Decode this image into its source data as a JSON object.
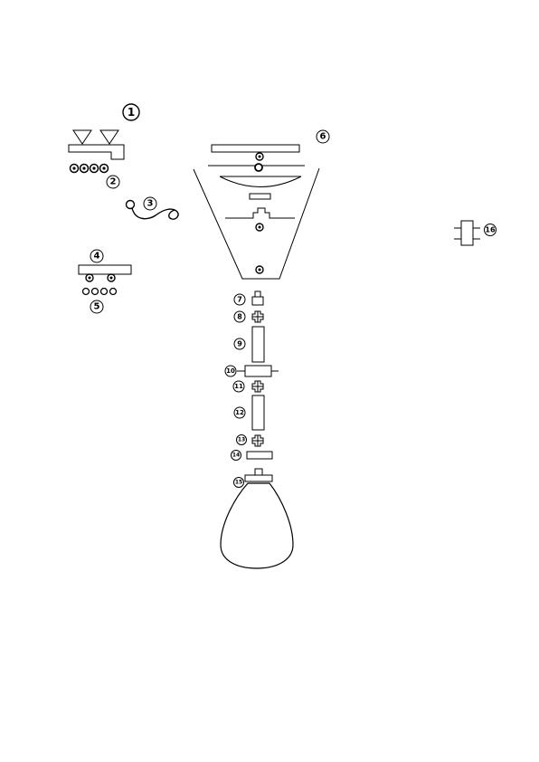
{
  "callouts": {
    "c1": "1",
    "c2": "2",
    "c3": "3",
    "c4": "4",
    "c5": "5",
    "c6": "6",
    "c7": "7",
    "c8": "8",
    "c9": "9",
    "c10": "10",
    "c11": "11",
    "c12": "12",
    "c13": "13",
    "c14": "14",
    "c15": "15",
    "c16": "16"
  }
}
